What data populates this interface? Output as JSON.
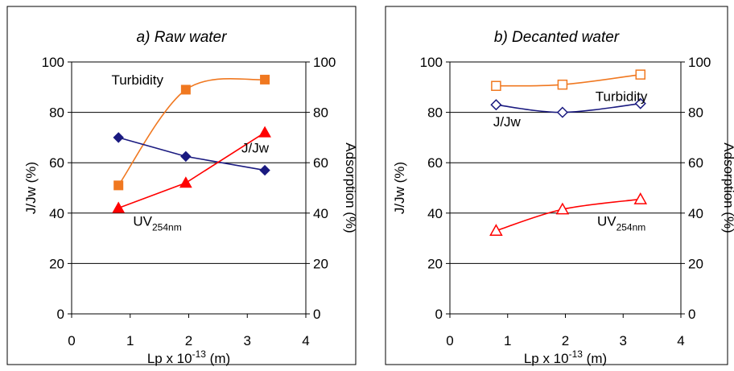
{
  "chart_data": [
    {
      "type": "line",
      "title": "a) Raw water",
      "xlabel": {
        "prefix": "Lp x 10",
        "sup": "-13",
        "suffix": " (m)"
      },
      "ylabel": "J/Jw (%)",
      "y2label": "Adsorption (%)",
      "xlim": [
        0,
        4
      ],
      "ylim": [
        0,
        100
      ],
      "y2lim": [
        0,
        100
      ],
      "xticks": [
        0,
        1,
        2,
        3,
        4
      ],
      "yticks": [
        0,
        20,
        40,
        60,
        80,
        100
      ],
      "grid": "horizontal",
      "series": [
        {
          "name": "Turbidity",
          "axis": "right",
          "color": "#f07820",
          "marker": "square",
          "filled": true,
          "smooth": true,
          "x": [
            0.8,
            1.95,
            3.3
          ],
          "y": [
            51,
            89,
            93
          ]
        },
        {
          "name": "J/Jw",
          "axis": "left",
          "color": "#1a1a80",
          "marker": "diamond",
          "filled": true,
          "smooth": false,
          "x": [
            0.8,
            1.95,
            3.3
          ],
          "y": [
            70,
            62.5,
            57
          ]
        },
        {
          "name": "UV254nm",
          "axis": "right",
          "color": "#ff0000",
          "marker": "triangle",
          "filled": true,
          "smooth": false,
          "x": [
            0.8,
            1.95,
            3.3
          ],
          "y": [
            42,
            52,
            72
          ]
        }
      ],
      "annotations": [
        {
          "text": "Turbidity",
          "x": 0.68,
          "y": 91
        },
        {
          "text": "J/Jw",
          "x": 2.9,
          "y": 64
        },
        {
          "text": "UV",
          "sub": "254nm",
          "x": 1.05,
          "y": 35
        }
      ]
    },
    {
      "type": "line",
      "title": "b) Decanted water",
      "xlabel": {
        "prefix": "Lp x 10",
        "sup": "-13",
        "suffix": " (m)"
      },
      "ylabel": "J/Jw (%)",
      "y2label": "Adsorption (%)",
      "xlim": [
        0,
        4
      ],
      "ylim": [
        0,
        100
      ],
      "y2lim": [
        0,
        100
      ],
      "xticks": [
        0,
        1,
        2,
        3,
        4
      ],
      "yticks": [
        0,
        20,
        40,
        60,
        80,
        100
      ],
      "grid": "horizontal",
      "series": [
        {
          "name": "Turbidity",
          "axis": "right",
          "color": "#f07820",
          "marker": "square",
          "filled": false,
          "smooth": true,
          "x": [
            0.8,
            1.95,
            3.3
          ],
          "y": [
            90.5,
            91,
            95
          ]
        },
        {
          "name": "J/Jw",
          "axis": "left",
          "color": "#1a1a80",
          "marker": "diamond",
          "filled": false,
          "smooth": true,
          "x": [
            0.8,
            1.95,
            3.3
          ],
          "y": [
            83,
            80,
            83.5
          ]
        },
        {
          "name": "UV254nm",
          "axis": "right",
          "color": "#ff0000",
          "marker": "triangle",
          "filled": false,
          "smooth": true,
          "x": [
            0.8,
            1.95,
            3.3
          ],
          "y": [
            33,
            41.5,
            45.5
          ]
        }
      ],
      "annotations": [
        {
          "text": "Turbidity",
          "x": 2.52,
          "y": 84.5
        },
        {
          "text": "J/Jw",
          "x": 0.75,
          "y": 74.5
        },
        {
          "text": "UV",
          "sub": "254nm",
          "x": 2.55,
          "y": 35
        }
      ]
    }
  ]
}
